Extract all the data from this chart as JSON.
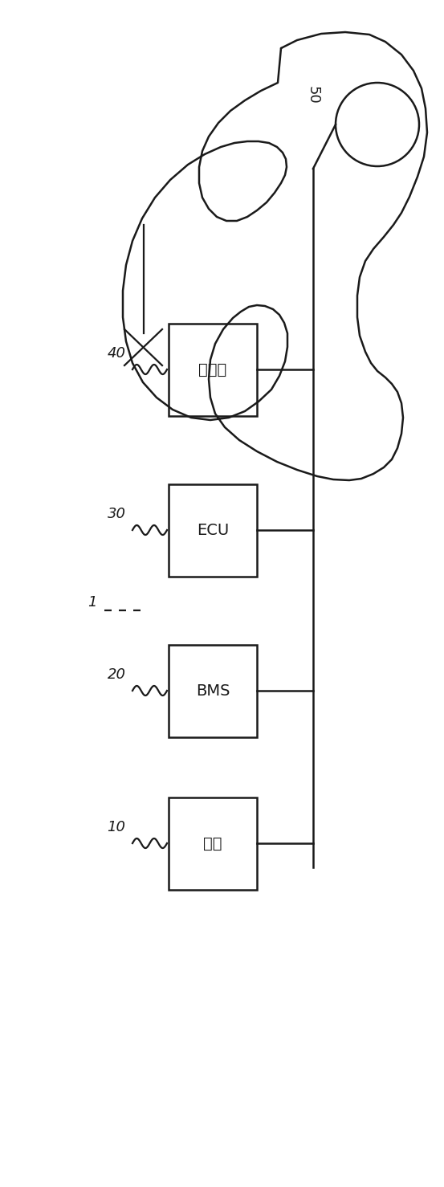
{
  "bg_color": "#ffffff",
  "line_color": "#1a1a1a",
  "box_color": "#ffffff",
  "labels": {
    "battery": "电池",
    "bms": "BMS",
    "ecu": "ECU",
    "inverter": "逆变器",
    "motor_label": "50",
    "ref1": "1",
    "ref10": "10",
    "ref20": "20",
    "ref30": "30",
    "ref40": "40"
  },
  "font_size": 13,
  "lw": 1.8
}
